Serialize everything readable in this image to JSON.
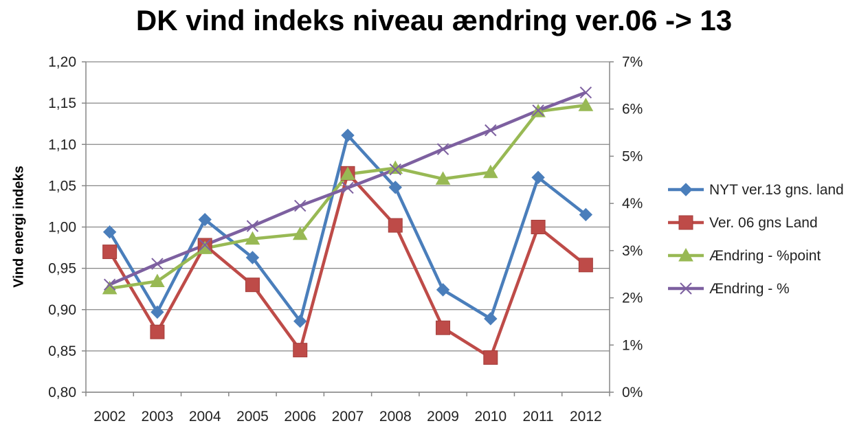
{
  "chart_data": {
    "type": "line",
    "title": "DK vind indeks niveau ændring ver.06 -> 13",
    "ylabel": "Vind energi indeks",
    "y2label": "",
    "categories": [
      "2002",
      "2003",
      "2004",
      "2005",
      "2006",
      "2007",
      "2008",
      "2009",
      "2010",
      "2011",
      "2012"
    ],
    "ylim": [
      0.8,
      1.2
    ],
    "y2lim": [
      0,
      7
    ],
    "yticks": [
      "0,80",
      "0,85",
      "0,90",
      "0,95",
      "1,00",
      "1,05",
      "1,10",
      "1,15",
      "1,20"
    ],
    "y2ticks": [
      "0%",
      "1%",
      "2%",
      "3%",
      "4%",
      "5%",
      "6%",
      "7%"
    ],
    "grid": true,
    "legend_position": "right",
    "series": [
      {
        "name": "NYT ver.13 gns. land",
        "axis": "left",
        "color": "#4a7ebb",
        "marker": "diamond",
        "values": [
          0.994,
          0.897,
          1.009,
          0.963,
          0.886,
          1.111,
          1.048,
          0.924,
          0.889,
          1.06,
          1.015
        ]
      },
      {
        "name": "Ver. 06 gns Land",
        "axis": "left",
        "color": "#be4b48",
        "marker": "square",
        "values": [
          0.97,
          0.873,
          0.978,
          0.93,
          0.851,
          1.065,
          1.002,
          0.878,
          0.842,
          1.0,
          0.954
        ]
      },
      {
        "name": "Ændring - %point",
        "axis": "right",
        "color": "#98b954",
        "marker": "triangle",
        "values": [
          2.2,
          2.35,
          3.05,
          3.25,
          3.35,
          4.62,
          4.75,
          4.52,
          4.66,
          5.95,
          6.08
        ]
      },
      {
        "name": "Ændring - %",
        "axis": "right",
        "color": "#7d60a0",
        "marker": "x",
        "values": [
          2.28,
          2.72,
          3.12,
          3.52,
          3.95,
          4.33,
          4.72,
          5.15,
          5.55,
          5.97,
          6.35
        ]
      }
    ]
  }
}
